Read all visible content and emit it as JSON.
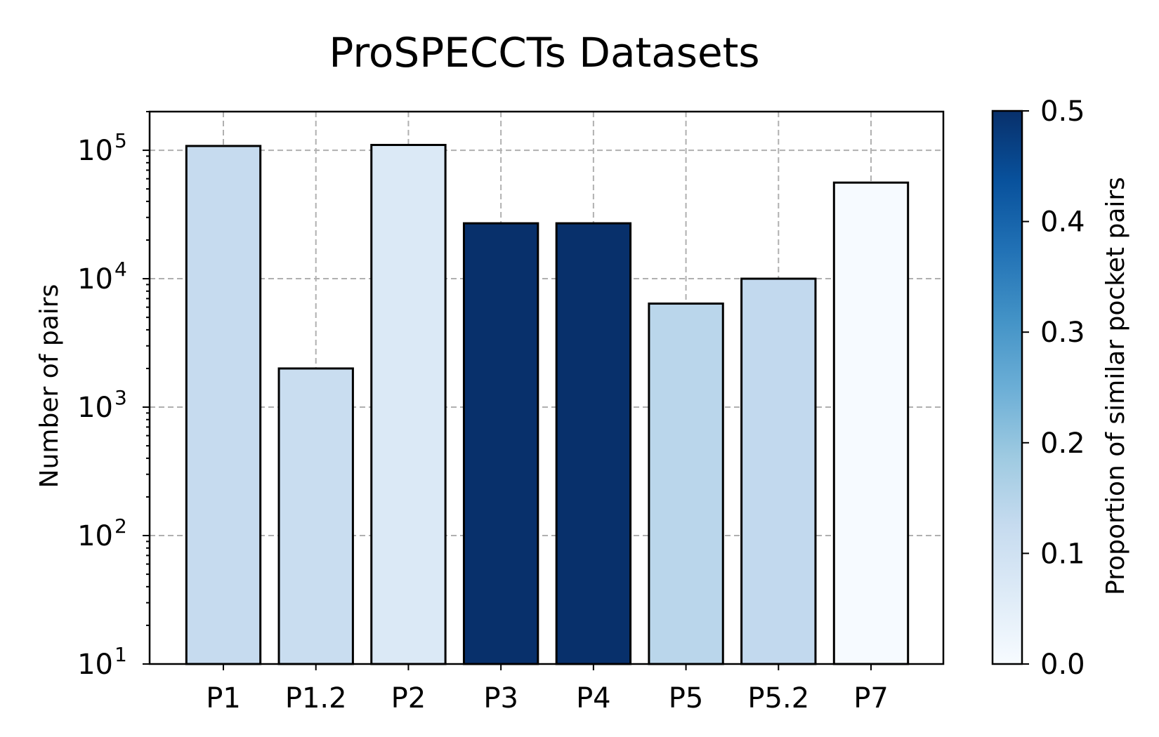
{
  "chart_data": {
    "type": "bar",
    "title": "ProSPECCTs Datasets",
    "xlabel": "",
    "ylabel": "Number of pairs",
    "yscale": "log",
    "ylim": [
      10,
      200000
    ],
    "grid": true,
    "categories": [
      "P1",
      "P1.2",
      "P2",
      "P3",
      "P4",
      "P5",
      "P5.2",
      "P7"
    ],
    "values": [
      108000,
      2000,
      110000,
      27000,
      27000,
      6400,
      10000,
      56000
    ],
    "color_values": [
      0.14,
      0.15,
      0.1,
      0.5,
      0.5,
      0.18,
      0.16,
      0.02
    ],
    "colors": [
      "#c6dbef",
      "#c9ddf0",
      "#dbe9f6",
      "#08306b",
      "#08306b",
      "#bad6eb",
      "#c2d9ee",
      "#f6faff"
    ],
    "yticks": [
      10,
      100,
      1000,
      10000,
      100000
    ],
    "ytick_labels": [
      {
        "base": "10",
        "exp": "1"
      },
      {
        "base": "10",
        "exp": "2"
      },
      {
        "base": "10",
        "exp": "3"
      },
      {
        "base": "10",
        "exp": "4"
      },
      {
        "base": "10",
        "exp": "5"
      }
    ],
    "colorbar": {
      "label": "Proportion of similar pocket pairs",
      "range": [
        0.0,
        0.5
      ],
      "ticks": [
        "0.0",
        "0.1",
        "0.2",
        "0.3",
        "0.4",
        "0.5"
      ],
      "colormap": "Blues",
      "gradient": [
        "#f7fbff",
        "#deebf7",
        "#c6dbef",
        "#9ecae1",
        "#6baed6",
        "#4292c6",
        "#2171b5",
        "#08519c",
        "#08306b"
      ]
    }
  }
}
